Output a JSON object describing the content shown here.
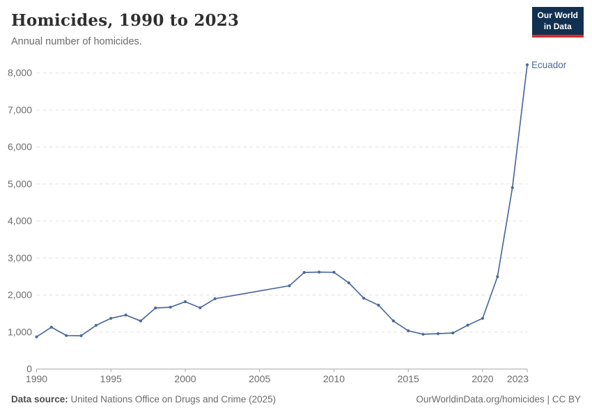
{
  "header": {
    "title": "Homicides, 1990 to 2023",
    "subtitle": "Annual number of homicides.",
    "logo": {
      "line1": "Our World",
      "line2": "in Data",
      "bg_color": "#12304f",
      "accent_color": "#d2302c"
    }
  },
  "chart_data": {
    "type": "line",
    "title": "Homicides, 1990 to 2023",
    "subtitle": "Annual number of homicides.",
    "xlabel": "",
    "ylabel": "",
    "xlim": [
      1990,
      2023
    ],
    "ylim": [
      0,
      8000
    ],
    "x_ticks": [
      1990,
      1995,
      2000,
      2005,
      2010,
      2015,
      2020,
      2023
    ],
    "y_ticks": [
      0,
      1000,
      2000,
      3000,
      4000,
      5000,
      6000,
      7000,
      8000
    ],
    "grid": "horizontal-dashed",
    "legend_position": "end-of-line-label",
    "missing_years_note": "no markers for 2003-2006 (straight interpolated segment)",
    "series": [
      {
        "name": "Ecuador",
        "color": "#4c6a9c",
        "points": [
          [
            1990,
            870
          ],
          [
            1991,
            1130
          ],
          [
            1992,
            905
          ],
          [
            1993,
            900
          ],
          [
            1994,
            1180
          ],
          [
            1995,
            1370
          ],
          [
            1996,
            1460
          ],
          [
            1997,
            1300
          ],
          [
            1998,
            1650
          ],
          [
            1999,
            1670
          ],
          [
            2000,
            1820
          ],
          [
            2001,
            1655
          ],
          [
            2002,
            1900
          ],
          [
            2007,
            2250
          ],
          [
            2008,
            2610
          ],
          [
            2009,
            2620
          ],
          [
            2010,
            2615
          ],
          [
            2011,
            2330
          ],
          [
            2012,
            1915
          ],
          [
            2013,
            1725
          ],
          [
            2014,
            1300
          ],
          [
            2015,
            1035
          ],
          [
            2016,
            940
          ],
          [
            2017,
            955
          ],
          [
            2018,
            975
          ],
          [
            2019,
            1185
          ],
          [
            2020,
            1370
          ],
          [
            2021,
            2495
          ],
          [
            2022,
            4900
          ],
          [
            2023,
            8220
          ]
        ],
        "marker_years": [
          1990,
          1991,
          1992,
          1993,
          1994,
          1995,
          1996,
          1997,
          1998,
          1999,
          2000,
          2001,
          2002,
          2007,
          2008,
          2009,
          2010,
          2011,
          2012,
          2013,
          2014,
          2015,
          2016,
          2017,
          2018,
          2019,
          2020,
          2021,
          2022,
          2023
        ]
      }
    ],
    "colors": {
      "line": "#4c6a9c",
      "grid": "#e1e1e1",
      "axis": "#a5a5a5",
      "tick_label": "#6b6b6b"
    }
  },
  "footer": {
    "source_label": "Data source:",
    "source_text": " United Nations Office on Drugs and Crime (2025)",
    "attribution": "OurWorldinData.org/homicides | CC BY"
  }
}
